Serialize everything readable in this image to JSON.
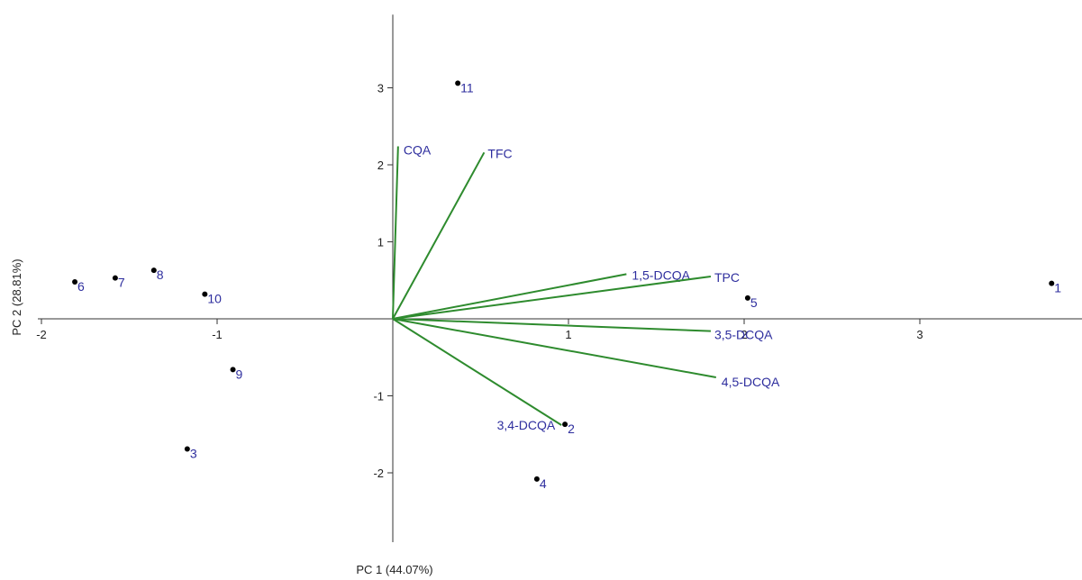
{
  "chart_data": {
    "type": "scatter",
    "subtype": "pca-biplot",
    "xlabel": "PC 1 (44.07%)",
    "ylabel": "PC 2 (28.81%)",
    "xlim": [
      -2,
      3.95
    ],
    "ylim": [
      -2.9,
      3.95
    ],
    "xticks": [
      -2,
      -1,
      1,
      2,
      3
    ],
    "yticks": [
      -2,
      -1,
      1,
      2,
      3
    ],
    "grid": false,
    "colors": {
      "points": "#000000",
      "labels": "#2e2e9e",
      "loadings": "#2e8b2e",
      "axes": "#333333"
    },
    "points": [
      {
        "label": "1",
        "x": 3.75,
        "y": 0.46
      },
      {
        "label": "2",
        "x": 0.98,
        "y": -1.37
      },
      {
        "label": "3",
        "x": -1.17,
        "y": -1.69
      },
      {
        "label": "4",
        "x": 0.82,
        "y": -2.08
      },
      {
        "label": "5",
        "x": 2.02,
        "y": 0.27
      },
      {
        "label": "6",
        "x": -1.81,
        "y": 0.48
      },
      {
        "label": "7",
        "x": -1.58,
        "y": 0.53
      },
      {
        "label": "8",
        "x": -1.36,
        "y": 0.63
      },
      {
        "label": "9",
        "x": -0.91,
        "y": -0.66
      },
      {
        "label": "10",
        "x": -1.07,
        "y": 0.32
      },
      {
        "label": "11",
        "x": 0.37,
        "y": 3.06
      }
    ],
    "loadings": [
      {
        "label": "CQA",
        "x": 0.03,
        "y": 2.24
      },
      {
        "label": "TFC",
        "x": 0.52,
        "y": 2.16
      },
      {
        "label": "1,5-DCQA",
        "x": 1.33,
        "y": 0.58
      },
      {
        "label": "TPC",
        "x": 1.81,
        "y": 0.55
      },
      {
        "label": "3,5-DCQA",
        "x": 1.81,
        "y": -0.16
      },
      {
        "label": "4,5-DCQA",
        "x": 1.84,
        "y": -0.76
      },
      {
        "label": "3,4-DCQA",
        "x": 0.96,
        "y": -1.38
      }
    ]
  }
}
